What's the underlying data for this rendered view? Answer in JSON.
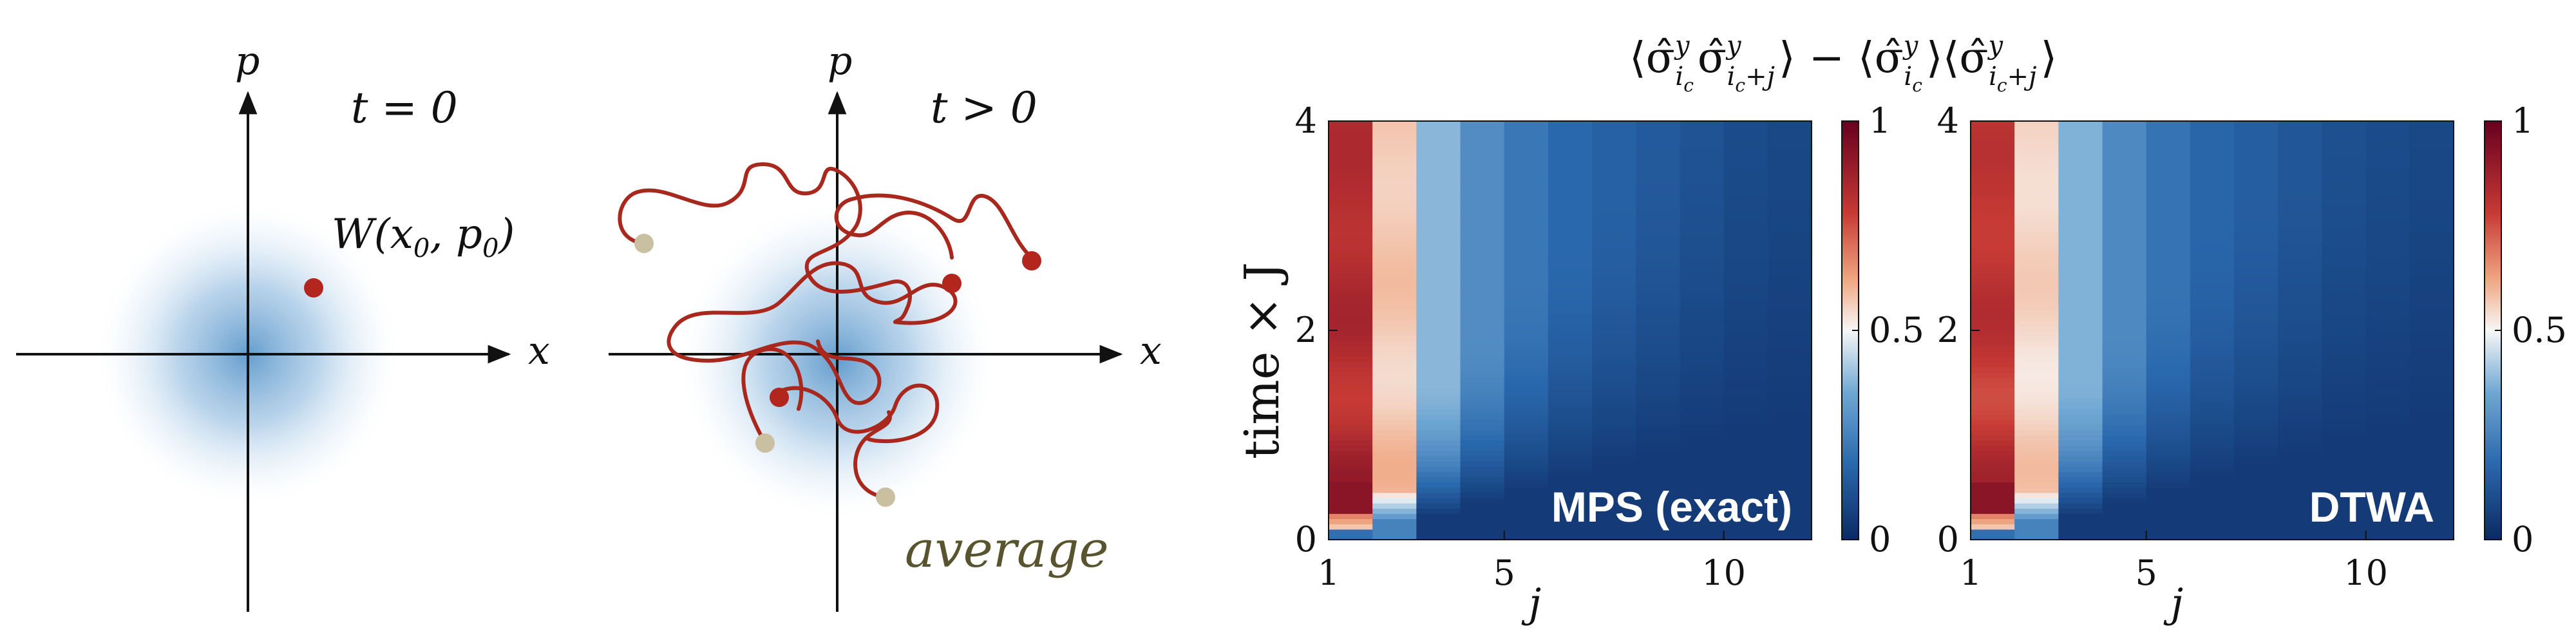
{
  "left_panel": {
    "x_label": "x",
    "p_label": "p",
    "time_label": "t = 0",
    "point_label": "W(x",
    "point_label_sub0": "0",
    "point_label_mid": ", p",
    "point_label_sub1": "0",
    "point_label_end": ")"
  },
  "middle_panel": {
    "x_label": "x",
    "p_label": "p",
    "time_label": "t > 0",
    "average_label": "average"
  },
  "heatmap_title": {
    "part1": "⟨σ̂",
    "part2": "σ̂",
    "part3": "⟩ − ⟨σ̂",
    "part4": "⟩⟨σ̂",
    "part5": "⟩",
    "sup": "y",
    "sub_ic": "i",
    "sub_c": "c",
    "sub_plus": "+j"
  },
  "colors": {
    "trajectory": "#a8281e",
    "point_red": "#b3261e",
    "point_tan": "#c8c0a0",
    "blob": "#4a8cc4"
  },
  "chart_data": [
    {
      "type": "heatmap",
      "label": "MPS (exact)",
      "xlabel": "j",
      "ylabel": "time × J",
      "x_ticks": [
        "1",
        "5",
        "10"
      ],
      "y_ticks": [
        "0",
        "2",
        "4"
      ],
      "xlim": [
        1,
        11
      ],
      "ylim": [
        0,
        4
      ],
      "colorbar": {
        "min": 0,
        "max": 1,
        "ticks": [
          "0",
          "0.5",
          "1"
        ]
      },
      "steady_values": [
        0.83,
        0.57,
        0.38,
        0.28,
        0.22,
        0.18,
        0.16,
        0.14,
        0.12,
        0.1,
        0.09
      ]
    },
    {
      "type": "heatmap",
      "label": "DTWA",
      "xlabel": "j",
      "ylabel": "",
      "x_ticks": [
        "1",
        "5",
        "10"
      ],
      "y_ticks": [
        "0",
        "2",
        "4"
      ],
      "xlim": [
        1,
        11
      ],
      "ylim": [
        0,
        4
      ],
      "colorbar": {
        "min": 0,
        "max": 1,
        "ticks": [
          "0",
          "0.5",
          "1"
        ]
      },
      "steady_values": [
        0.8,
        0.55,
        0.37,
        0.27,
        0.21,
        0.17,
        0.15,
        0.13,
        0.11,
        0.1,
        0.09
      ]
    }
  ]
}
